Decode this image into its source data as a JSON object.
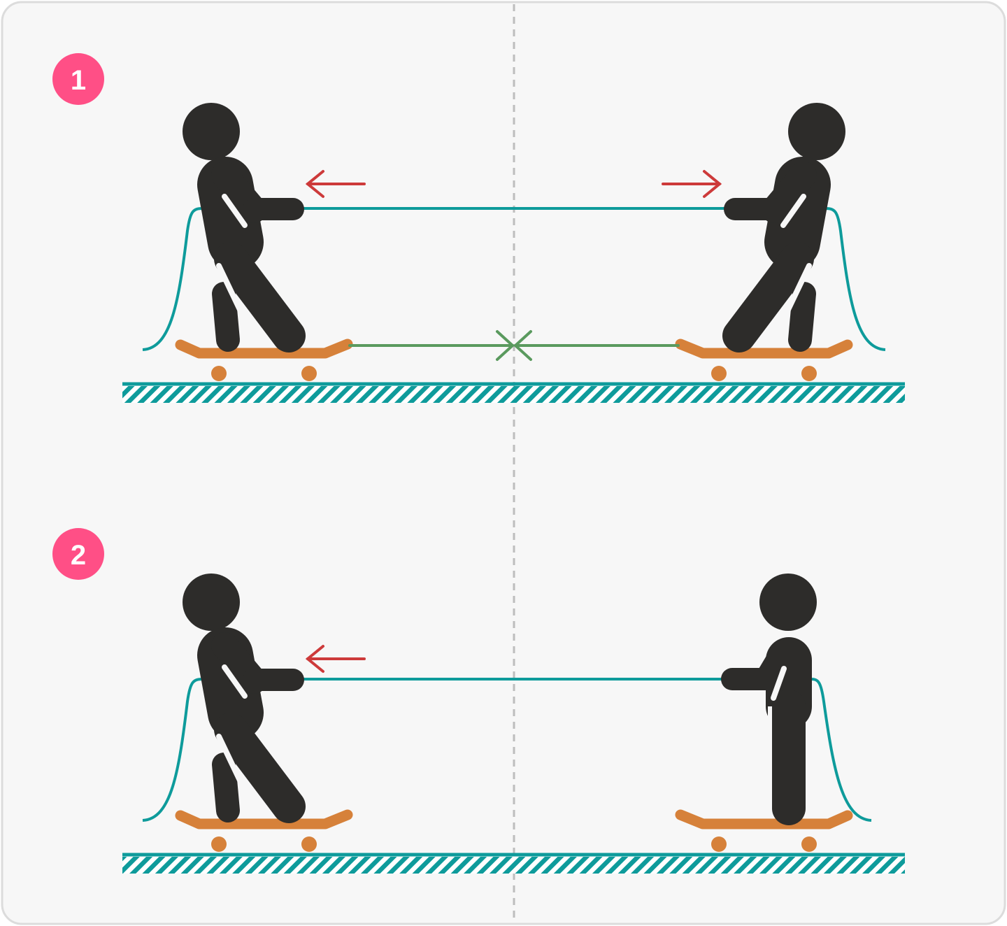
{
  "colors": {
    "panel_bg": "#f7f7f7",
    "panel_border": "#dcdcdc",
    "divider": "#bdbdbd",
    "badge": "#ff4f86",
    "figure": "#2d2c2a",
    "rope": "#0e9b9b",
    "skateboard": "#d6813a",
    "ground": "#0e9b9b",
    "pull_arrow": "#cd3a3a",
    "motion_arrow": "#5a9a5e"
  },
  "scenes": [
    {
      "badge_label": "1",
      "left_person_pulls": true,
      "right_person_pulls": true
    },
    {
      "badge_label": "2",
      "left_person_pulls": true,
      "right_person_pulls": false
    }
  ],
  "icons": {
    "badge": "circle-number-badge",
    "person": "stick-figure-icon",
    "skateboard": "skateboard-icon",
    "rope": "rope-icon",
    "ground": "hatched-ground-icon",
    "arrow": "arrow-icon"
  }
}
